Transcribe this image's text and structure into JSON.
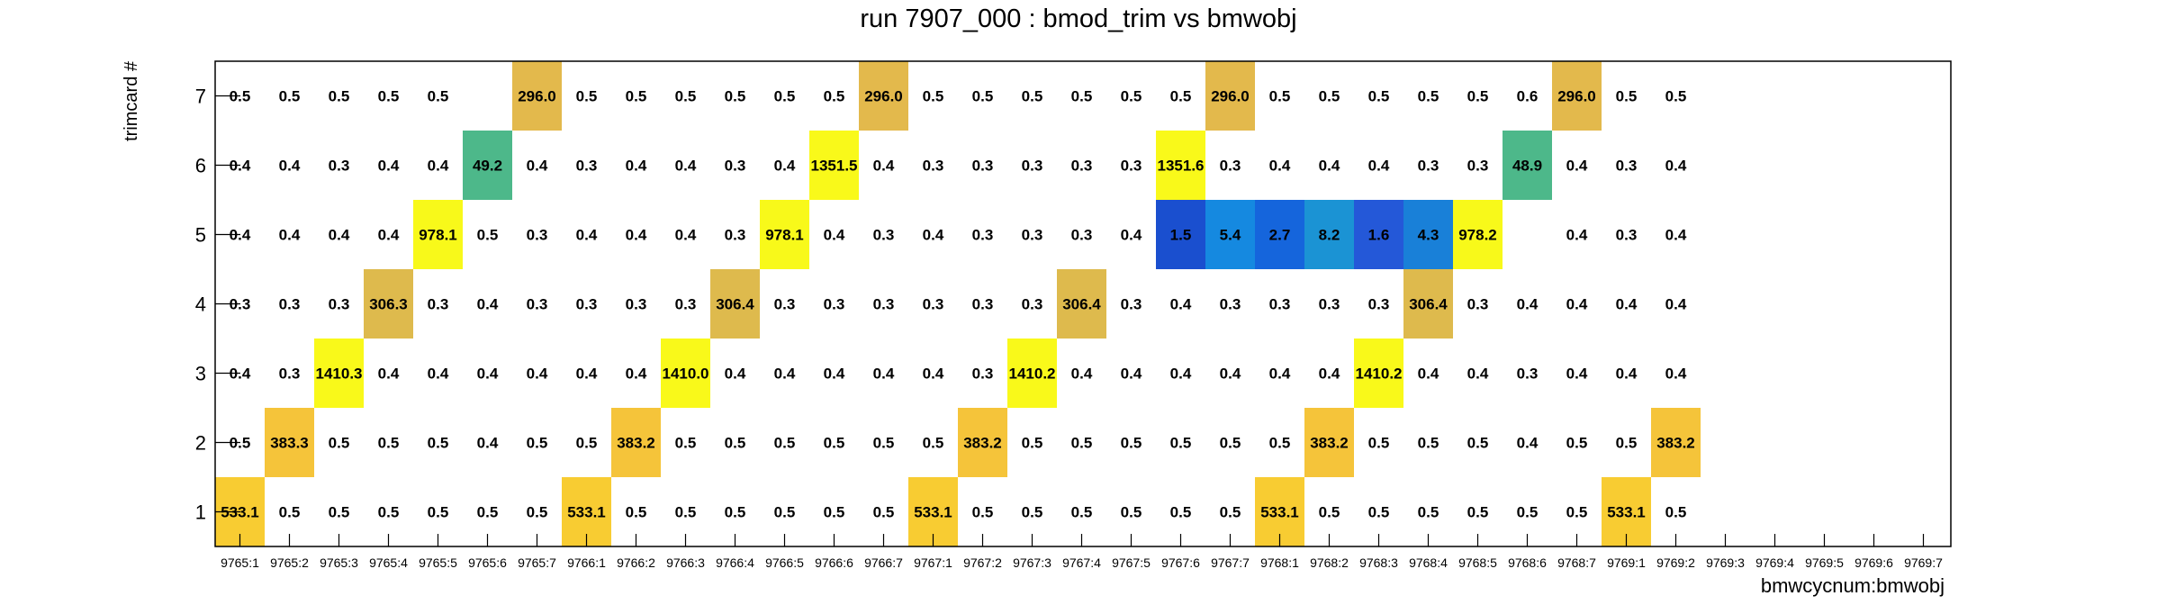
{
  "chart_data": {
    "type": "heatmap",
    "title": "run 7907_000 : bmod_trim vs bmwobj",
    "xlabel": "bmwcycnum:bmwobj",
    "ylabel": "trimcard #",
    "x_categories": [
      "9765:1",
      "9765:2",
      "9765:3",
      "9765:4",
      "9765:5",
      "9765:6",
      "9765:7",
      "9766:1",
      "9766:2",
      "9766:3",
      "9766:4",
      "9766:5",
      "9766:6",
      "9766:7",
      "9767:1",
      "9767:2",
      "9767:3",
      "9767:4",
      "9767:5",
      "9767:6",
      "9767:7",
      "9768:1",
      "9768:2",
      "9768:3",
      "9768:4",
      "9768:5",
      "9768:6",
      "9768:7",
      "9769:1",
      "9769:2",
      "9769:3",
      "9769:4",
      "9769:5",
      "9769:6",
      "9769:7"
    ],
    "y_categories": [
      "1",
      "2",
      "3",
      "4",
      "5",
      "6",
      "7"
    ],
    "rows": [
      [
        "533.1",
        "0.5",
        "0.5",
        "0.5",
        "0.5",
        "0.5",
        "0.5",
        "533.1",
        "0.5",
        "0.5",
        "0.5",
        "0.5",
        "0.5",
        "0.5",
        "533.1",
        "0.5",
        "0.5",
        "0.5",
        "0.5",
        "0.5",
        "0.5",
        "533.1",
        "0.5",
        "0.5",
        "0.5",
        "0.5",
        "0.5",
        "0.5",
        "533.1",
        "0.5",
        null,
        null,
        null,
        null,
        null
      ],
      [
        "0.5",
        "383.3",
        "0.5",
        "0.5",
        "0.5",
        "0.4",
        "0.5",
        "0.5",
        "383.2",
        "0.5",
        "0.5",
        "0.5",
        "0.5",
        "0.5",
        "0.5",
        "383.2",
        "0.5",
        "0.5",
        "0.5",
        "0.5",
        "0.5",
        "0.5",
        "383.2",
        "0.5",
        "0.5",
        "0.5",
        "0.4",
        "0.5",
        "0.5",
        "383.2",
        null,
        null,
        null,
        null,
        null
      ],
      [
        "0.4",
        "0.3",
        "1410.3",
        "0.4",
        "0.4",
        "0.4",
        "0.4",
        "0.4",
        "0.4",
        "1410.0",
        "0.4",
        "0.4",
        "0.4",
        "0.4",
        "0.4",
        "0.3",
        "1410.2",
        "0.4",
        "0.4",
        "0.4",
        "0.4",
        "0.4",
        "0.4",
        "1410.2",
        "0.4",
        "0.4",
        "0.3",
        "0.4",
        "0.4",
        "0.4",
        null,
        null,
        null,
        null,
        null
      ],
      [
        "0.3",
        "0.3",
        "0.3",
        "306.3",
        "0.3",
        "0.4",
        "0.3",
        "0.3",
        "0.3",
        "0.3",
        "306.4",
        "0.3",
        "0.3",
        "0.3",
        "0.3",
        "0.3",
        "0.3",
        "306.4",
        "0.3",
        "0.4",
        "0.3",
        "0.3",
        "0.3",
        "0.3",
        "306.4",
        "0.3",
        "0.4",
        "0.4",
        "0.4",
        "0.4",
        null,
        null,
        null,
        null,
        null
      ],
      [
        "0.4",
        "0.4",
        "0.4",
        "0.4",
        "978.1",
        "0.5",
        "0.3",
        "0.4",
        "0.4",
        "0.4",
        "0.3",
        "978.1",
        "0.4",
        "0.3",
        "0.4",
        "0.3",
        "0.3",
        "0.3",
        "0.4",
        "1.5",
        "5.4",
        "2.7",
        "8.2",
        "1.6",
        "4.3",
        "978.2",
        null,
        "0.4",
        "0.3",
        "0.4",
        null,
        null,
        null,
        null,
        null
      ],
      [
        "0.4",
        "0.4",
        "0.3",
        "0.4",
        "0.4",
        "49.2",
        "0.4",
        "0.3",
        "0.4",
        "0.4",
        "0.3",
        "0.4",
        "1351.5",
        "0.4",
        "0.3",
        "0.3",
        "0.3",
        "0.3",
        "0.3",
        "1351.6",
        "0.3",
        "0.4",
        "0.4",
        "0.4",
        "0.3",
        "0.3",
        "48.9",
        "0.4",
        "0.3",
        "0.4",
        null,
        null,
        null,
        null,
        null
      ],
      [
        "0.5",
        "0.5",
        "0.5",
        "0.5",
        "0.5",
        null,
        "296.0",
        "0.5",
        "0.5",
        "0.5",
        "0.5",
        "0.5",
        "0.5",
        "296.0",
        "0.5",
        "0.5",
        "0.5",
        "0.5",
        "0.5",
        "0.5",
        "296.0",
        "0.5",
        "0.5",
        "0.5",
        "0.5",
        "0.5",
        "0.6",
        "296.0",
        "0.5",
        "0.5",
        null,
        null,
        null,
        null,
        null
      ]
    ],
    "colors": {
      "c1_5": "#1a4fcf",
      "c1_6": "#2458d8",
      "c2_7": "#1565dc",
      "c4_3": "#1980d8",
      "c5_4": "#1589e0",
      "c8_2": "#1b93d4",
      "c48_9": "#4db88a",
      "c296": "#e3b94c",
      "c306": "#deba4d",
      "c383": "#f5c43a",
      "c533": "#f8cc32",
      "c978": "#f8f91a",
      "c1351": "#f9f91a",
      "c1410": "#f9f91a"
    },
    "grid": false,
    "legend": "none"
  }
}
